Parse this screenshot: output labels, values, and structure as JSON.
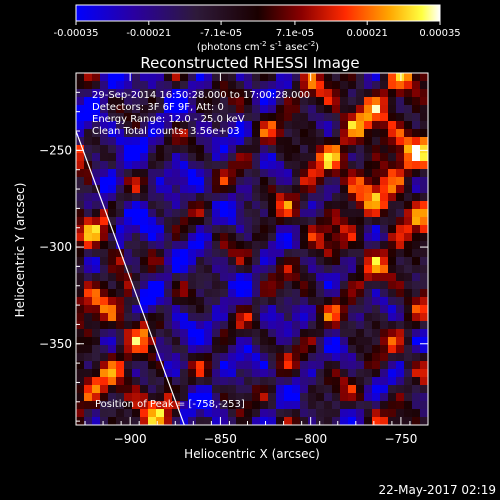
{
  "colorbar": {
    "min": -0.00035,
    "max": 0.00035,
    "tick_labels": [
      "-0.00035",
      "-0.00021",
      "-7.1e-05",
      "7.1e-05",
      "0.00021",
      "0.00035"
    ],
    "tick_values": [
      -0.00035,
      -0.00021,
      -7.1e-05,
      7.1e-05,
      0.00021,
      0.00035
    ],
    "units_label": "(photons cm",
    "units_exp1": "-2",
    "units_mid": " s",
    "units_exp2": "-1",
    "units_tail": " asec",
    "units_exp3": "-2",
    "units_close": ")"
  },
  "info_lines": {
    "time_range": "29-Sep-2014 16:50:28.000 to 17:00:28.000",
    "detectors": "Detectors: 3F 6F 9F, Att: 0",
    "energy_range": "Energy Range: 12.0 - 25.0 keV",
    "clean": "Clean     Total counts: 3.56e+03",
    "peak": "Position of Peak = [-758,-253]"
  },
  "footer": {
    "date": "22-May-2017 02:19"
  },
  "chart_data": {
    "type": "heatmap",
    "title": "Reconstructed RHESSI Image",
    "xlabel": "Heliocentric X (arcsec)",
    "ylabel": "Heliocentric Y (arcsec)",
    "xlim": [
      -930,
      -735
    ],
    "ylim": [
      -392,
      -210
    ],
    "x_ticks": [
      -900,
      -850,
      -800,
      -750
    ],
    "y_ticks": [
      -250,
      -300,
      -350
    ],
    "x_tick_labels": [
      "−900",
      "−850",
      "−800",
      "−750"
    ],
    "y_tick_labels": [
      "−250",
      "−300",
      "−350"
    ],
    "value_range": [
      -0.00035,
      0.00035
    ],
    "colormap": "rainbow-to-hot",
    "grid": false,
    "peak_position": [
      -758,
      -253
    ],
    "limb_line": [
      [
        -930,
        -240
      ],
      [
        -870,
        -392
      ]
    ]
  }
}
